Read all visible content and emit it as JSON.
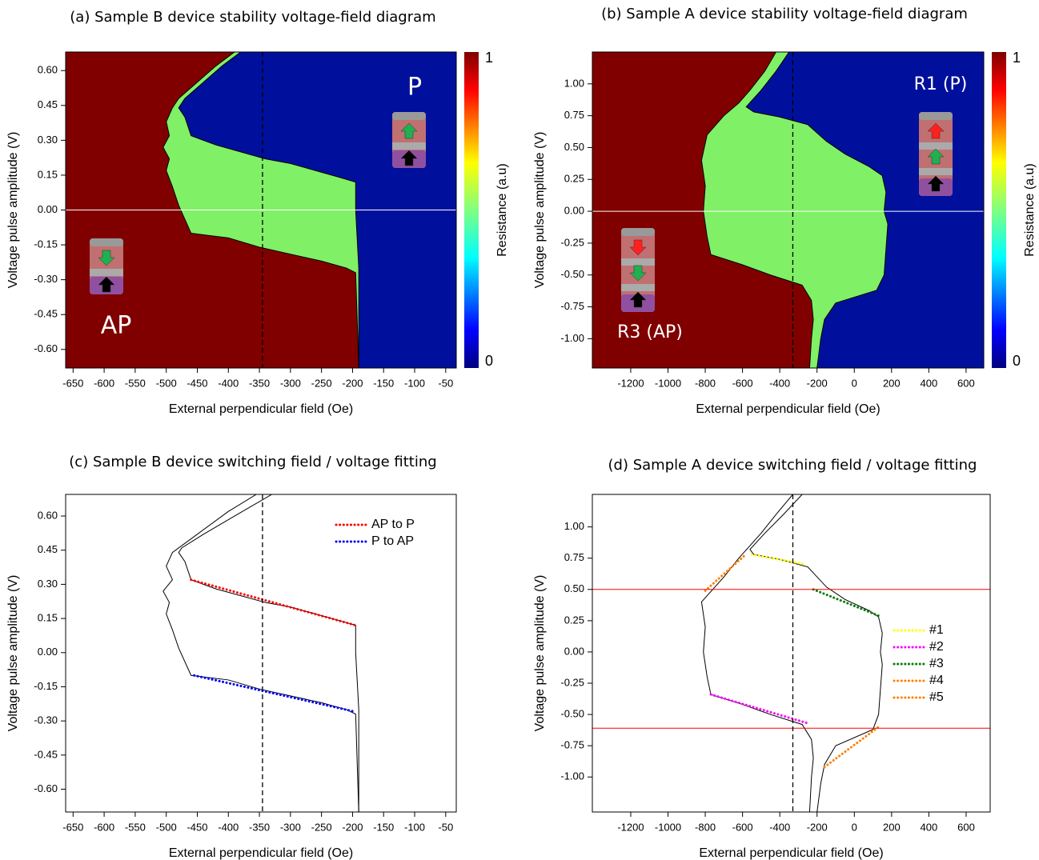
{
  "chart_data": [
    {
      "type": "heatmap",
      "title": "(a)  Sample B device stability voltage-field diagram",
      "xlabel": "External perpendicular field (Oe)",
      "ylabel": "Voltage pulse amplitude (V)",
      "xlim": [
        -662,
        -33
      ],
      "ylim": [
        -0.68,
        0.68
      ],
      "xticks": [
        -650,
        -600,
        -550,
        -500,
        -450,
        -400,
        -350,
        -300,
        -250,
        -200,
        -150,
        -100,
        -50
      ],
      "yticks": [
        {
          "value": -0.6,
          "label": "-0.60"
        },
        {
          "value": -0.45,
          "label": "-0.45"
        },
        {
          "value": -0.3,
          "label": "-0.30"
        },
        {
          "value": -0.15,
          "label": "-0.15"
        },
        {
          "value": 0,
          "label": "0.00"
        },
        {
          "value": 0.15,
          "label": "0.15"
        },
        {
          "value": 0.3,
          "label": "0.30"
        },
        {
          "value": 0.45,
          "label": "0.45"
        },
        {
          "value": 0.6,
          "label": "0.60"
        }
      ],
      "vline": -345,
      "hlines": [
        0
      ],
      "hline_color": "#ffffff",
      "background": "#800000",
      "regions": [
        {
          "color": "#80f066",
          "x": [
            -390,
            -420,
            -450,
            -480,
            -490,
            -500,
            -495,
            -505,
            -495,
            -500,
            -490,
            -480,
            -460,
            -400,
            -350,
            -300,
            -250,
            -210,
            -195,
            -190
          ],
          "y": [
            0.68,
            0.62,
            0.55,
            0.48,
            0.44,
            0.38,
            0.32,
            0.27,
            0.22,
            0.17,
            0.1,
            0.02,
            -0.1,
            -0.12,
            -0.16,
            -0.19,
            -0.22,
            -0.25,
            -0.27,
            -0.68
          ]
        },
        {
          "color": "#00109c",
          "x": [
            -380,
            -410,
            -440,
            -470,
            -480,
            -470,
            -460,
            -420,
            -380,
            -340,
            -300,
            -260,
            -220,
            -195,
            -195,
            -190,
            -190
          ],
          "y": [
            0.68,
            0.62,
            0.55,
            0.48,
            0.44,
            0.4,
            0.32,
            0.28,
            0.25,
            0.22,
            0.2,
            0.17,
            0.14,
            0.12,
            0,
            -0.25,
            -0.68
          ]
        }
      ],
      "colorbar": {
        "label": "Resistance (a.u)",
        "ticks": [
          0,
          1
        ]
      },
      "annotations": [
        "P",
        "AP"
      ]
    },
    {
      "type": "heatmap",
      "title": "(b) Sample A device stability voltage-field diagram",
      "xlabel": "External perpendicular field (Oe)",
      "ylabel": "Voltage pulse amplitude (V)",
      "xlim": [
        -1406,
        695
      ],
      "ylim": [
        -1.23,
        1.25
      ],
      "xticks": [
        -1200,
        -1000,
        -800,
        -600,
        -400,
        -200,
        0,
        200,
        400,
        600
      ],
      "yticks": [
        {
          "value": -1,
          "label": "-1.00"
        },
        {
          "value": -0.75,
          "label": "-0.75"
        },
        {
          "value": -0.5,
          "label": "-0.50"
        },
        {
          "value": -0.25,
          "label": "-0.25"
        },
        {
          "value": 0,
          "label": "0.00"
        },
        {
          "value": 0.25,
          "label": "0.25"
        },
        {
          "value": 0.5,
          "label": "0.50"
        },
        {
          "value": 0.75,
          "label": "0.75"
        },
        {
          "value": 1,
          "label": "1.00"
        }
      ],
      "vline": -330,
      "hlines": [
        0
      ],
      "hline_color": "#ffffff",
      "background": "#800000",
      "regions": [
        {
          "color": "#80f066",
          "x": [
            -420,
            -480,
            -560,
            -620,
            -700,
            -790,
            -820,
            -800,
            -810,
            -790,
            -770,
            -600,
            -450,
            -280,
            -230,
            -220,
            -230,
            -240
          ],
          "y": [
            1.25,
            1.1,
            0.95,
            0.85,
            0.75,
            0.6,
            0.4,
            0.2,
            0,
            -0.2,
            -0.34,
            -0.42,
            -0.5,
            -0.58,
            -0.7,
            -0.85,
            -1,
            -1.23
          ]
        },
        {
          "color": "#00109c",
          "x": [
            -350,
            -420,
            -500,
            -580,
            -540,
            -400,
            -250,
            -150,
            -50,
            80,
            150,
            170,
            160,
            180,
            170,
            160,
            120,
            -100,
            -160,
            -180,
            -200
          ],
          "y": [
            1.25,
            1.1,
            0.95,
            0.82,
            0.78,
            0.74,
            0.68,
            0.55,
            0.45,
            0.35,
            0.28,
            0.15,
            0,
            -0.1,
            -0.3,
            -0.5,
            -0.62,
            -0.72,
            -0.85,
            -1,
            -1.23
          ]
        }
      ],
      "colorbar": {
        "label": "Resistance (a.u)",
        "ticks": [
          0,
          1
        ]
      },
      "annotations": [
        "R1 (P)",
        "R3 (AP)"
      ]
    },
    {
      "type": "line",
      "title": "(c) Sample B device switching field / voltage fitting",
      "xlabel": "External perpendicular field (Oe)",
      "ylabel": "Voltage pulse amplitude (V)",
      "xlim": [
        -662,
        -33
      ],
      "ylim": [
        -0.7,
        0.695
      ],
      "xticks": [
        -650,
        -600,
        -550,
        -500,
        -450,
        -400,
        -350,
        -300,
        -250,
        -200,
        -150,
        -100,
        -50
      ],
      "yticks": [
        {
          "value": -0.6,
          "label": "-0.60"
        },
        {
          "value": -0.45,
          "label": "-0.45"
        },
        {
          "value": -0.3,
          "label": "-0.30"
        },
        {
          "value": -0.15,
          "label": "-0.15"
        },
        {
          "value": 0,
          "label": "0.00"
        },
        {
          "value": 0.15,
          "label": "0.15"
        },
        {
          "value": 0.3,
          "label": "0.30"
        },
        {
          "value": 0.45,
          "label": "0.45"
        },
        {
          "value": 0.6,
          "label": "0.60"
        }
      ],
      "vline": -345,
      "legend": "upper right",
      "curves": [
        {
          "x": [
            -355,
            -400,
            -450,
            -490,
            -500,
            -490,
            -505,
            -495,
            -500,
            -490,
            -480,
            -460,
            -400,
            -350,
            -300,
            -250,
            -210,
            -195,
            -190
          ],
          "y": [
            0.695,
            0.62,
            0.52,
            0.44,
            0.38,
            0.32,
            0.27,
            0.22,
            0.17,
            0.1,
            0.02,
            -0.1,
            -0.12,
            -0.16,
            -0.19,
            -0.22,
            -0.25,
            -0.27,
            -0.7
          ]
        },
        {
          "x": [
            -330,
            -390,
            -440,
            -475,
            -480,
            -470,
            -460,
            -420,
            -380,
            -340,
            -300,
            -260,
            -220,
            -195,
            -195,
            -190,
            -190
          ],
          "y": [
            0.695,
            0.6,
            0.52,
            0.46,
            0.44,
            0.4,
            0.32,
            0.28,
            0.25,
            0.22,
            0.2,
            0.17,
            0.14,
            0.12,
            0,
            -0.25,
            -0.7
          ]
        }
      ],
      "series": [
        {
          "name": "AP to P",
          "color": "#ff0000",
          "x": [
            -460,
            -195
          ],
          "y": [
            0.32,
            0.12
          ]
        },
        {
          "name": "P to AP",
          "color": "#0000ff",
          "x": [
            -455,
            -195
          ],
          "y": [
            -0.1,
            -0.26
          ]
        }
      ]
    },
    {
      "type": "line",
      "title": "(d) Sample A device switching field / voltage fitting",
      "xlabel": "External perpendicular field (Oe)",
      "ylabel": "Voltage pulse amplitude (V)",
      "xlim": [
        -1406,
        729
      ],
      "ylim": [
        -1.28,
        1.26
      ],
      "xticks": [
        -1200,
        -1000,
        -800,
        -600,
        -400,
        -200,
        0,
        200,
        400,
        600
      ],
      "yticks": [
        {
          "value": -1,
          "label": "-1.00"
        },
        {
          "value": -0.75,
          "label": "-0.75"
        },
        {
          "value": -0.5,
          "label": "-0.50"
        },
        {
          "value": -0.25,
          "label": "-0.25"
        },
        {
          "value": 0,
          "label": "0.00"
        },
        {
          "value": 0.25,
          "label": "0.25"
        },
        {
          "value": 0.5,
          "label": "0.50"
        },
        {
          "value": 0.75,
          "label": "0.75"
        },
        {
          "value": 1,
          "label": "1.00"
        }
      ],
      "vline": -330,
      "hlines": [
        0.5,
        -0.61
      ],
      "hline_color": "#ff0000",
      "legend": "right",
      "curves": [
        {
          "x": [
            -330,
            -420,
            -500,
            -560,
            -620,
            -700,
            -790,
            -820,
            -800,
            -810,
            -790,
            -770,
            -600,
            -450,
            -280,
            -230,
            -220,
            -230,
            -240
          ],
          "y": [
            1.26,
            1.1,
            0.95,
            0.85,
            0.75,
            0.6,
            0.45,
            0.4,
            0.2,
            0,
            -0.2,
            -0.34,
            -0.42,
            -0.5,
            -0.58,
            -0.7,
            -0.85,
            -1,
            -1.28
          ]
        },
        {
          "x": [
            -280,
            -380,
            -480,
            -560,
            -540,
            -400,
            -250,
            -150,
            -50,
            80,
            130,
            150,
            140,
            150,
            140,
            130,
            100,
            -100,
            -160,
            -180,
            -200
          ],
          "y": [
            1.26,
            1.1,
            0.95,
            0.82,
            0.78,
            0.74,
            0.68,
            0.52,
            0.42,
            0.33,
            0.28,
            0.15,
            0,
            -0.1,
            -0.3,
            -0.5,
            -0.62,
            -0.75,
            -0.9,
            -1.05,
            -1.28
          ]
        }
      ],
      "series": [
        {
          "name": "#1",
          "color": "#ffff00",
          "x": [
            -550,
            -260
          ],
          "y": [
            0.78,
            0.7
          ]
        },
        {
          "name": "#2",
          "color": "#ff00ff",
          "x": [
            -770,
            -250
          ],
          "y": [
            -0.34,
            -0.57
          ]
        },
        {
          "name": "#3",
          "color": "#008000",
          "x": [
            -220,
            130
          ],
          "y": [
            0.5,
            0.29
          ]
        },
        {
          "name": "#4",
          "color": "#ff8000",
          "x": [
            -800,
            -590
          ],
          "y": [
            0.49,
            0.77
          ]
        },
        {
          "name": "#5",
          "color": "#ff8000",
          "x": [
            -160,
            130
          ],
          "y": [
            -0.92,
            -0.6
          ]
        }
      ]
    }
  ]
}
